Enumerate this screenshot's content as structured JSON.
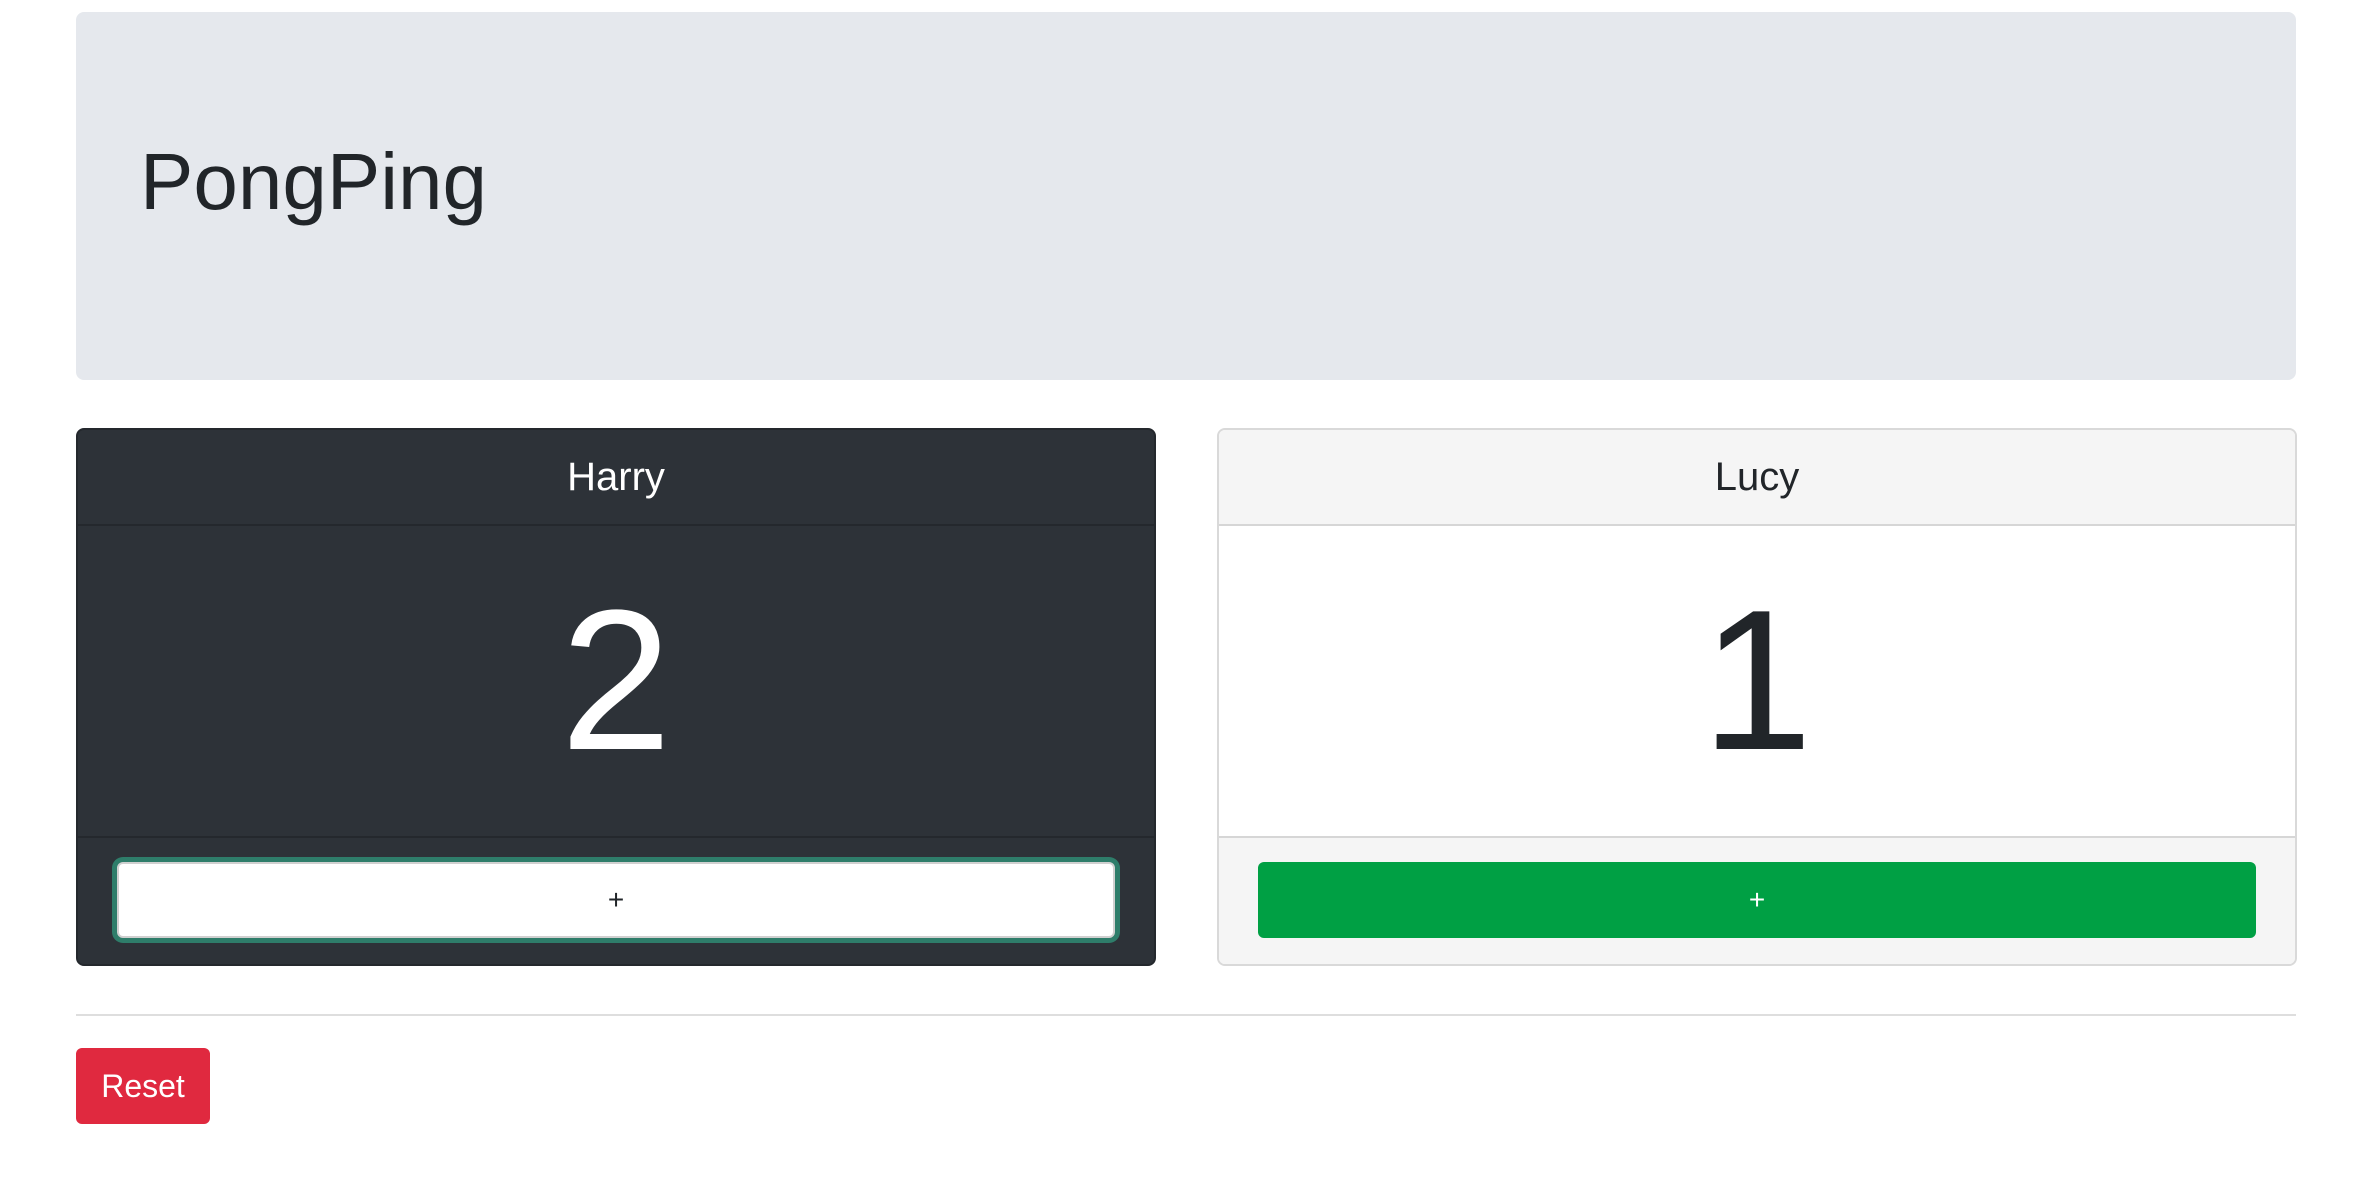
{
  "app": {
    "title": "PongPing"
  },
  "players": [
    {
      "name": "Harry",
      "score": "2",
      "add_label": "+"
    },
    {
      "name": "Lucy",
      "score": "1",
      "add_label": "+"
    }
  ],
  "controls": {
    "reset_label": "Reset"
  },
  "colors": {
    "jumbotron_bg": "#e5e8ed",
    "dark_card_bg": "#2d3238",
    "success": "#00a044",
    "danger": "#e0293f",
    "focus_ring": "#2e7d6a"
  }
}
